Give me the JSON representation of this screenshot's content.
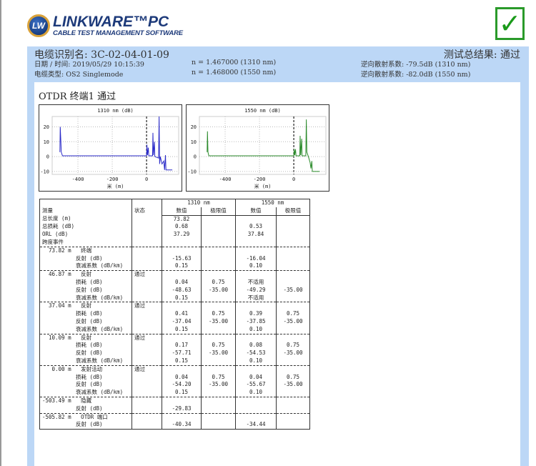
{
  "logo": {
    "title": "LINKWARE™PC",
    "subtitle": "CABLE TEST MANAGEMENT SOFTWARE",
    "badge": "LW"
  },
  "overall_icon": "checkmark-icon",
  "header": {
    "cable_id": "电缆识别名: 3C-02-04-01-09",
    "overall_result": "测试总结果: 通过",
    "datetime": "日期 / 时间: 2019/05/29  10:15:39",
    "cable_type": "电缆类型: OS2 Singlemode",
    "n1310": "n = 1.467000 (1310 nm)",
    "n1550": "n = 1.468000 (1550 nm)",
    "bs1310": "逆向散射系数: -79.5dB  (1310 nm)",
    "bs1550": "逆向散射系数: -82.0dB  (1550 nm)"
  },
  "section_title": "OTDR 终端1  通过",
  "chart_data": [
    {
      "type": "line",
      "title": "1310 nm (dB)",
      "xlabel": "米 (m)",
      "color": "#2a2ac8",
      "xlim": [
        -550,
        187
      ],
      "ylim": [
        -12,
        27
      ],
      "xticks": [
        -400,
        -200,
        0
      ],
      "yticks": [
        20,
        10,
        0,
        -10
      ],
      "grid": true,
      "x": [
        -505,
        -503,
        -500,
        -497,
        -490,
        0,
        2,
        5,
        10,
        13,
        35,
        37,
        40,
        46,
        48,
        70,
        73,
        76,
        80,
        90,
        100,
        105,
        110,
        113,
        150
      ],
      "y": [
        3,
        20,
        12,
        3,
        0.5,
        0.5,
        8,
        1,
        6,
        0.5,
        0.5,
        16,
        1,
        10,
        0,
        -1,
        27,
        -5,
        0,
        -5,
        -3,
        -9,
        1,
        -9,
        -9
      ]
    },
    {
      "type": "line",
      "title": "1550 nm (dB)",
      "xlabel": "米 (m)",
      "color": "#2a8a2a",
      "xlim": [
        -550,
        187
      ],
      "ylim": [
        -12,
        27
      ],
      "xticks": [
        -400,
        -200,
        0
      ],
      "yticks": [
        20,
        10,
        0,
        -10
      ],
      "grid": true,
      "x": [
        -505,
        -503,
        -500,
        -495,
        0,
        2,
        5,
        10,
        13,
        35,
        37,
        40,
        46,
        48,
        70,
        73,
        76,
        85,
        95,
        100,
        105,
        108,
        150
      ],
      "y": [
        3,
        17,
        3,
        0.5,
        0.5,
        5,
        1,
        5,
        0.5,
        0.5,
        14,
        1,
        12,
        0.5,
        0.5,
        25,
        3,
        0,
        -4,
        -8,
        -3,
        -10,
        -10
      ]
    }
  ],
  "table": {
    "headers": {
      "measure": "测量",
      "status": "状态",
      "w1310": "1310 nm",
      "w1550": "1550 nm",
      "value": "数值",
      "limit": "限值",
      "limit2": "极限值"
    },
    "summary": [
      {
        "label": "总长度 (m)",
        "v1310": "73.82",
        "v1550": ""
      },
      {
        "label": "总损耗 (dB)",
        "v1310": "0.68",
        "v1550": "0.53"
      },
      {
        "label": "ORL (dB)",
        "v1310": "37.29",
        "v1550": "37.84"
      },
      {
        "label": "",
        "v1310": "",
        "v1550": ""
      },
      {
        "label": "跨度事件",
        "v1310": "",
        "v1550": ""
      }
    ],
    "events": [
      {
        "head": "  73.82 m   终端",
        "status": "",
        "rows": [
          {
            "label": "反射 (dB)",
            "v1310": "-15.63",
            "l1310": "",
            "v1550": "-16.04",
            "l1550": ""
          },
          {
            "label": "衰减系数 (dB/km)",
            "v1310": "0.15",
            "l1310": "",
            "v1550": "0.10",
            "l1550": ""
          }
        ]
      },
      {
        "head": "  46.87 m   反射",
        "status": "通过",
        "rows": [
          {
            "label": "损耗 (dB)",
            "v1310": "0.04",
            "l1310": "0.75",
            "v1550": "不适用",
            "l1550": ""
          },
          {
            "label": "反射 (dB)",
            "v1310": "-48.63",
            "l1310": "-35.00",
            "v1550": "-49.29",
            "l1550": "-35.00"
          },
          {
            "label": "衰减系数 (dB/km)",
            "v1310": "0.15",
            "l1310": "",
            "v1550": "不适用",
            "l1550": ""
          }
        ]
      },
      {
        "head": "  37.04 m   反射",
        "status": "通过",
        "rows": [
          {
            "label": "损耗 (dB)",
            "v1310": "0.41",
            "l1310": "0.75",
            "v1550": "0.39",
            "l1550": "0.75"
          },
          {
            "label": "反射 (dB)",
            "v1310": "-37.04",
            "l1310": "-35.00",
            "v1550": "-37.85",
            "l1550": "-35.00"
          },
          {
            "label": "衰减系数 (dB/km)",
            "v1310": "0.15",
            "l1310": "",
            "v1550": "0.10",
            "l1550": ""
          }
        ]
      },
      {
        "head": "  10.09 m   反射",
        "status": "通过",
        "rows": [
          {
            "label": "损耗 (dB)",
            "v1310": "0.17",
            "l1310": "0.75",
            "v1550": "0.08",
            "l1550": "0.75"
          },
          {
            "label": "反射 (dB)",
            "v1310": "-57.71",
            "l1310": "-35.00",
            "v1550": "-54.53",
            "l1550": "-35.00"
          },
          {
            "label": "衰减系数 (dB/km)",
            "v1310": "0.15",
            "l1310": "",
            "v1550": "0.10",
            "l1550": ""
          }
        ]
      },
      {
        "head": "   0.00 m   发射活动",
        "status": "通过",
        "rows": [
          {
            "label": "损耗 (dB)",
            "v1310": "0.04",
            "l1310": "0.75",
            "v1550": "0.04",
            "l1550": "0.75"
          },
          {
            "label": "反射 (dB)",
            "v1310": "-54.20",
            "l1310": "-35.00",
            "v1550": "-55.67",
            "l1550": "-35.00"
          },
          {
            "label": "衰减系数 (dB/km)",
            "v1310": "0.15",
            "l1310": "",
            "v1550": "0.10",
            "l1550": ""
          }
        ]
      },
      {
        "head": "-503.49 m   隐藏",
        "status": "",
        "rows": [
          {
            "label": "反射 (dB)",
            "v1310": "-29.83",
            "l1310": "",
            "v1550": "",
            "l1550": ""
          }
        ]
      },
      {
        "head": "-505.82 m   OTDR 端口",
        "status": "",
        "rows": [
          {
            "label": "反射 (dB)",
            "v1310": "-40.34",
            "l1310": "",
            "v1550": "-34.44",
            "l1550": ""
          }
        ]
      }
    ]
  }
}
